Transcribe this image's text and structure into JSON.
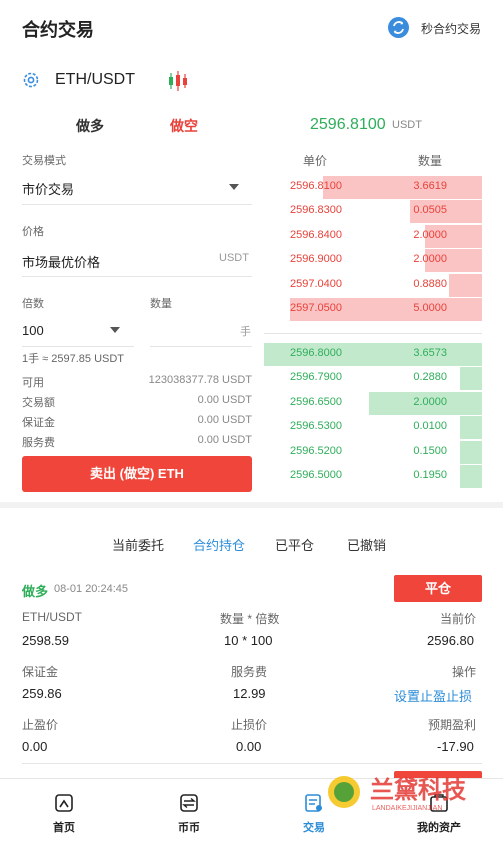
{
  "header": {
    "title": "合约交易",
    "switch_label": "秒合约交易"
  },
  "pair": {
    "name": "ETH/USDT"
  },
  "tabs": {
    "long": "做多",
    "short": "做空"
  },
  "last_price": {
    "value": "2596.8100",
    "unit": "USDT"
  },
  "form": {
    "mode_label": "交易模式",
    "mode_value": "市价交易",
    "price_label": "价格",
    "price_value": "市场最优价格",
    "price_unit": "USDT",
    "leverage_label": "倍数",
    "leverage_value": "100",
    "qty_label": "数量",
    "qty_unit": "手",
    "lot_hint": "1手 ≈ 2597.85 USDT",
    "stats": [
      {
        "label": "可用",
        "value": "123038377.78 USDT"
      },
      {
        "label": "交易额",
        "value": "0.00 USDT"
      },
      {
        "label": "保证金",
        "value": "0.00 USDT"
      },
      {
        "label": "服务费",
        "value": "0.00 USDT"
      }
    ],
    "submit_label": "卖出 (做空) ETH"
  },
  "orderbook": {
    "price_header": "单价",
    "qty_header": "数量",
    "asks": [
      {
        "price": "2596.8100",
        "qty": "3.6619",
        "depth": 0.73
      },
      {
        "price": "2596.8300",
        "qty": "0.0505",
        "depth": 0.33
      },
      {
        "price": "2596.8400",
        "qty": "2.0000",
        "depth": 0.26
      },
      {
        "price": "2596.9000",
        "qty": "2.0000",
        "depth": 0.26
      },
      {
        "price": "2597.0400",
        "qty": "0.8880",
        "depth": 0.15
      },
      {
        "price": "2597.0500",
        "qty": "5.0000",
        "depth": 0.88
      }
    ],
    "bids": [
      {
        "price": "2596.8000",
        "qty": "3.6573",
        "depth": 1.0
      },
      {
        "price": "2596.7900",
        "qty": "0.2880",
        "depth": 0.1
      },
      {
        "price": "2596.6500",
        "qty": "2.0000",
        "depth": 0.52
      },
      {
        "price": "2596.5300",
        "qty": "0.0100",
        "depth": 0.1
      },
      {
        "price": "2596.5200",
        "qty": "0.1500",
        "depth": 0.1
      },
      {
        "price": "2596.5000",
        "qty": "0.1950",
        "depth": 0.1
      }
    ],
    "colors": {
      "ask_bar": "#fbc4c4",
      "bid_bar": "#c3e9cd"
    }
  },
  "order_tabs": [
    "当前委托",
    "合约持仓",
    "已平仓",
    "已撤销"
  ],
  "position": {
    "side": "做多",
    "time": "08-01 20:24:45",
    "close_label": "平仓",
    "pair_label": "ETH/USDT",
    "pair_value": "2598.59",
    "qty_label": "数量 * 倍数",
    "qty_value": "10 * 100",
    "current_label": "当前价",
    "current_value": "2596.80",
    "margin_label": "保证金",
    "margin_value": "259.86",
    "fee_label": "服务费",
    "fee_value": "12.99",
    "action_label": "操作",
    "action_link": "设置止盈止损",
    "tp_label": "止盈价",
    "tp_value": "0.00",
    "sl_label": "止损价",
    "sl_value": "0.00",
    "pnl_label": "预期盈利",
    "pnl_value": "-17.90"
  },
  "nav": [
    {
      "label": "首页",
      "icon": "home-icon"
    },
    {
      "label": "币币",
      "icon": "exchange-icon"
    },
    {
      "label": "交易",
      "icon": "trade-icon"
    },
    {
      "label": "我的资产",
      "icon": "assets-icon"
    }
  ],
  "watermark": {
    "text": "兰黛科技",
    "sub": "LANDAIKEJIJIANJIAN"
  }
}
